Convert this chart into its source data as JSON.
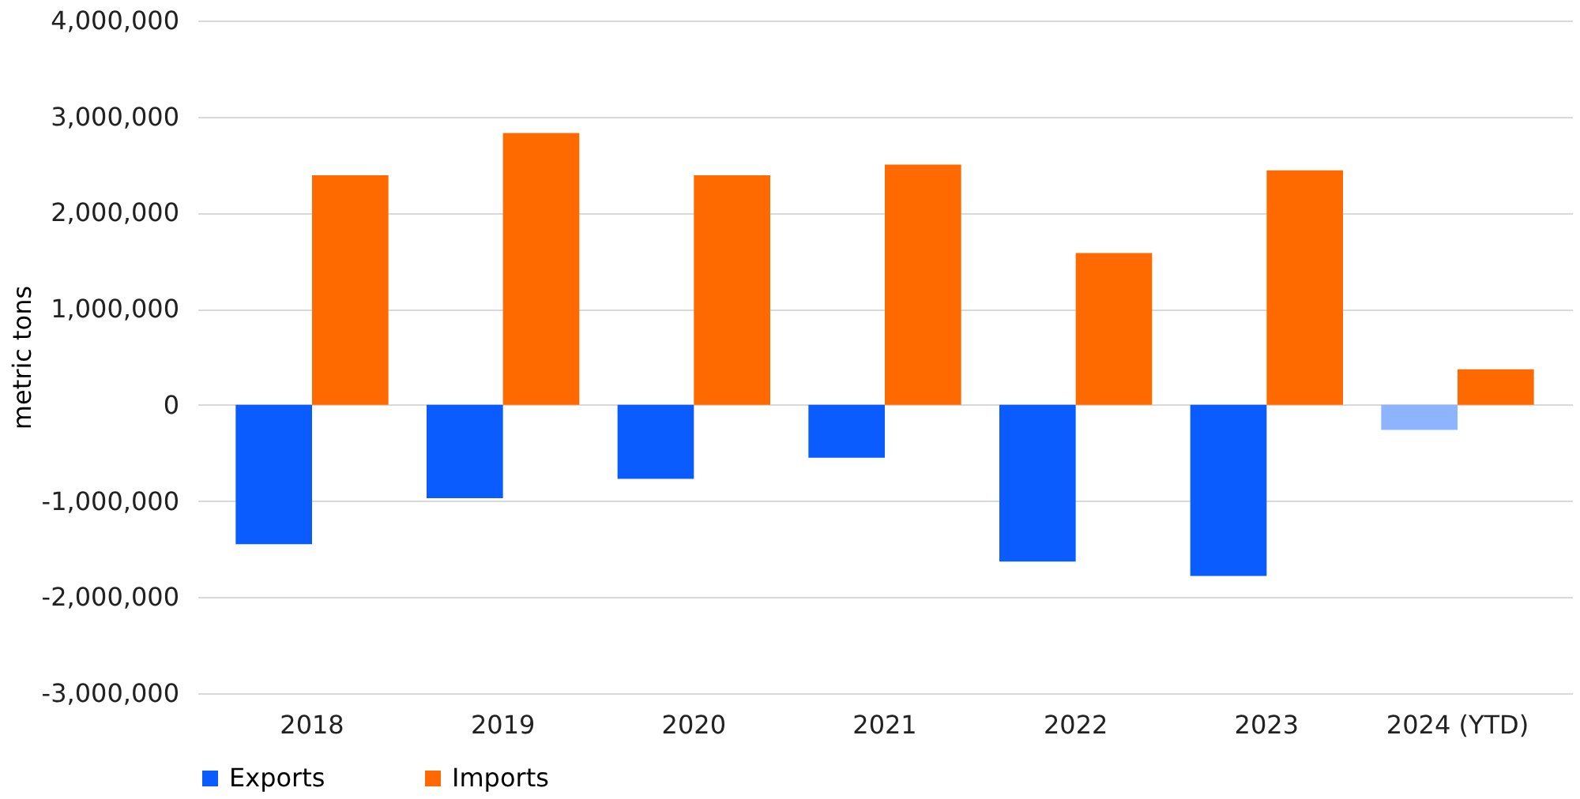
{
  "chart_data": {
    "type": "bar",
    "ylabel": "metric tons",
    "categories": [
      "2018",
      "2019",
      "2020",
      "2021",
      "2022",
      "2023",
      "2024 (YTD)"
    ],
    "series": [
      {
        "name": "Exports",
        "color": "#0a5cff",
        "colors": [
          "#0a5cff",
          "#0a5cff",
          "#0a5cff",
          "#0a5cff",
          "#0a5cff",
          "#0a5cff",
          "#8fb4ff"
        ],
        "values": [
          -1450000,
          -970000,
          -770000,
          -550000,
          -1630000,
          -1780000,
          -260000
        ]
      },
      {
        "name": "Imports",
        "color": "#ff6a00",
        "values": [
          2390000,
          2830000,
          2390000,
          2500000,
          1580000,
          2440000,
          370000
        ]
      }
    ],
    "ylim": [
      -3000000,
      4000000
    ],
    "yticks": [
      {
        "value": -3000000,
        "label": "-3,000,000"
      },
      {
        "value": -2000000,
        "label": "-2,000,000"
      },
      {
        "value": -1000000,
        "label": "-1,000,000"
      },
      0,
      {
        "value": 1000000,
        "label": "1,000,000"
      },
      {
        "value": 2000000,
        "label": "2,000,000"
      },
      {
        "value": 3000000,
        "label": "3,000,000"
      },
      {
        "value": 4000000,
        "label": "4,000,000"
      }
    ],
    "grid": "y",
    "legend": "bottom"
  }
}
